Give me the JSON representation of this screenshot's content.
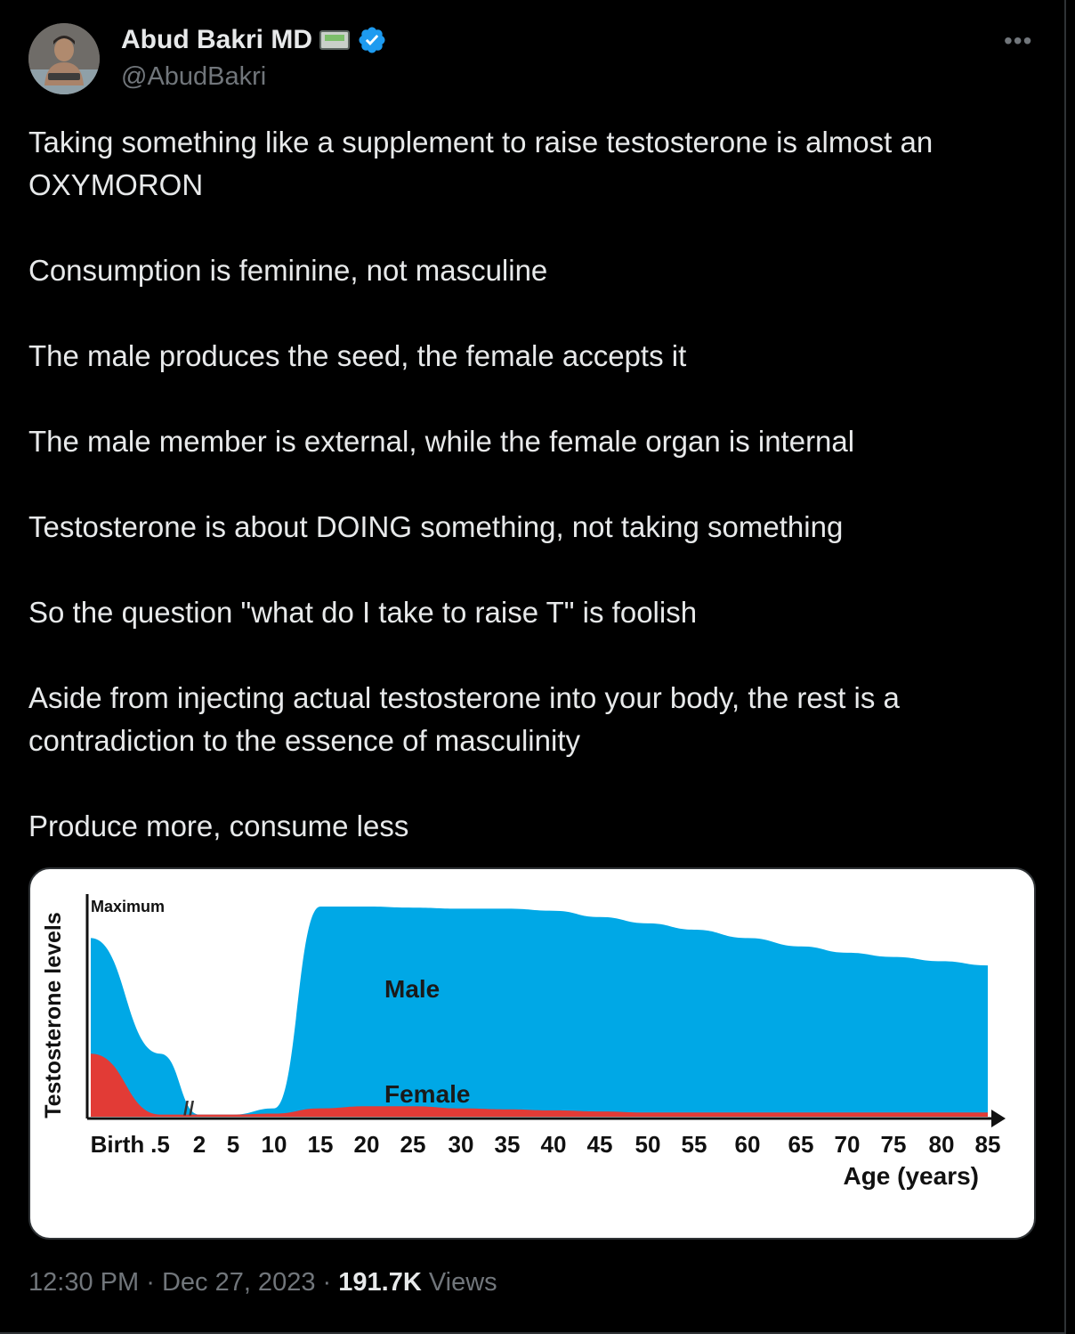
{
  "author": {
    "name": "Abud Bakri MD",
    "handle": "@AbudBakri",
    "badge_icon": "pager-icon",
    "verified_icon": "verified-badge-icon",
    "verified_color": "#1d9bf0"
  },
  "menu_icon": "more-options-icon",
  "tweet": {
    "paragraphs": [
      "Taking something like a supplement to raise testosterone is almost an OXYMORON",
      "Consumption is feminine, not masculine",
      "The male produces the seed, the female accepts it",
      "The male member is external, while the female organ is internal",
      "Testosterone is about DOING something, not taking something",
      "So the question \"what do I take to raise T\" is foolish",
      "Aside from injecting actual testosterone into your body, the rest is a contradiction to the essence of masculinity",
      "Produce more, consume less"
    ]
  },
  "chart_data": {
    "type": "area",
    "title": "",
    "ylabel": "Testosterone levels",
    "xlabel": "Age (years)",
    "y_top_label": "Maximum",
    "categories": [
      "Birth",
      ".5",
      "2",
      "5",
      "10",
      "15",
      "20",
      "25",
      "30",
      "35",
      "40",
      "45",
      "50",
      "55",
      "60",
      "65",
      "70",
      "75",
      "80",
      "85"
    ],
    "ylim": [
      0,
      100
    ],
    "series": [
      {
        "name": "Male",
        "color": "#00a8e6",
        "values": [
          85,
          30,
          1,
          1,
          4,
          100,
          100,
          99.5,
          99,
          99,
          98,
          95,
          92,
          89,
          85,
          81,
          78,
          76,
          74,
          72
        ]
      },
      {
        "name": "Female",
        "color": "#e23b36",
        "values": [
          30,
          1,
          1,
          1,
          1.5,
          4,
          5,
          5,
          4,
          3.5,
          3,
          2.5,
          2,
          2,
          2,
          2,
          2,
          2,
          2,
          2
        ]
      }
    ],
    "axis_break_marker": "//",
    "grid": false,
    "legend": "inline labels"
  },
  "footer": {
    "time": "12:30 PM",
    "separator": "·",
    "date": "Dec 27, 2023",
    "views_count": "191.7K",
    "views_label": "Views"
  }
}
